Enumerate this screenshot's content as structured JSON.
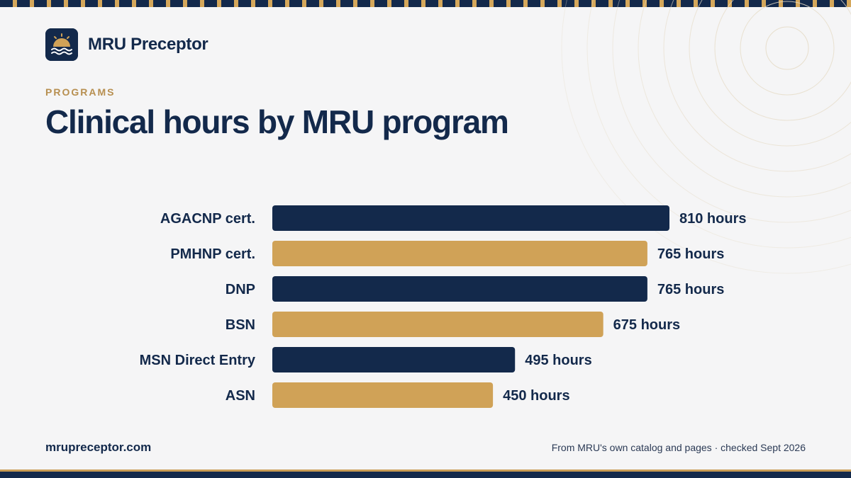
{
  "brand": {
    "name": "MRU Preceptor",
    "logo_icon": "sunrise-over-waves-icon"
  },
  "section_label": "PROGRAMS",
  "footer": {
    "site": "mrupreceptor.com",
    "source_note": "From MRU's own catalog and pages · checked Sept 2026"
  },
  "colors": {
    "navy": "#13294b",
    "gold": "#d0a257",
    "background": "#f5f5f6"
  },
  "chart_data": {
    "type": "bar",
    "orientation": "horizontal",
    "title": "Clinical hours by MRU program",
    "categories": [
      "AGACNP cert.",
      "PMHNP cert.",
      "DNP",
      "BSN",
      "MSN Direct Entry",
      "ASN"
    ],
    "values": [
      810,
      765,
      765,
      675,
      495,
      450
    ],
    "value_labels": [
      "810 hours",
      "765 hours",
      "765 hours",
      "675 hours",
      "495 hours",
      "450 hours"
    ],
    "bar_colors": [
      "#13294b",
      "#d0a257",
      "#13294b",
      "#d0a257",
      "#13294b",
      "#d0a257"
    ],
    "xlim": [
      0,
      810
    ],
    "grid": false,
    "legend": "none"
  }
}
